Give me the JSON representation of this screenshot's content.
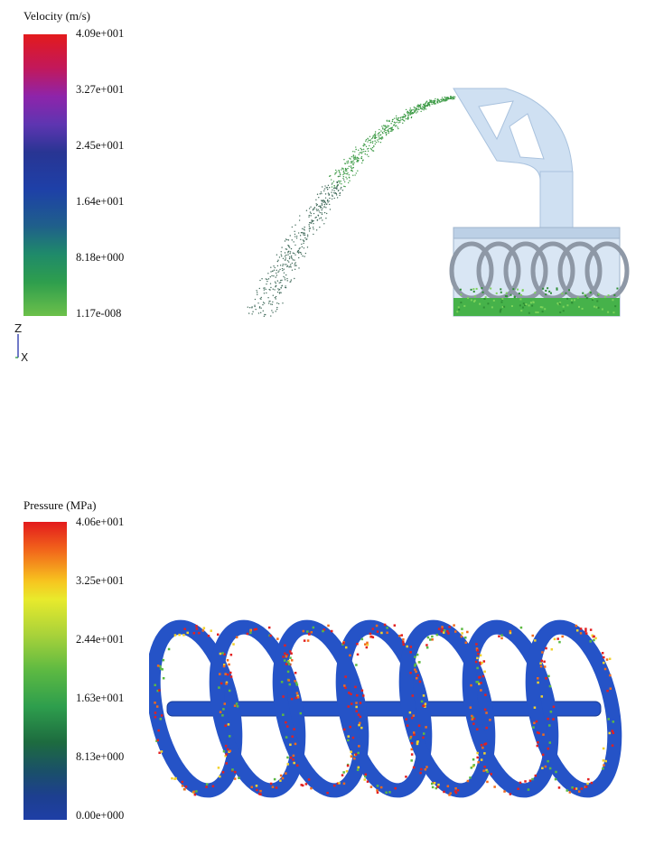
{
  "velocity_legend": {
    "title": "Velocity (m/s)",
    "ticks": [
      "4.09e+001",
      "3.27e+001",
      "2.45e+001",
      "1.64e+001",
      "8.18e+000",
      "1.17e-008"
    ]
  },
  "axis_triad": {
    "z_label": "Z",
    "x_label": "X"
  },
  "pressure_legend": {
    "title": "Pressure (MPa)",
    "ticks": [
      "4.06e+001",
      "3.25e+001",
      "2.44e+001",
      "1.63e+001",
      "8.13e+000",
      "0.00e+000"
    ]
  },
  "colors": {
    "housing": "#cfe0f2",
    "screw_blue": "#1f4fc4",
    "particle_green": "#3fa34d",
    "hotspot_red": "#e32020"
  }
}
